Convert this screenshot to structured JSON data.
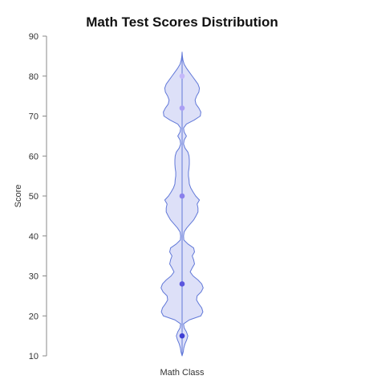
{
  "chart_data": {
    "type": "violin",
    "title": "Math Test Scores Distribution",
    "xlabel": "",
    "ylabel": "Score",
    "categories": [
      "Math Class"
    ],
    "ylim": [
      10,
      90
    ],
    "yticks": [
      10,
      20,
      30,
      40,
      50,
      60,
      70,
      80,
      90
    ],
    "grid": false,
    "points": [
      15,
      28,
      50,
      72,
      80
    ],
    "point_colors": [
      "#3f3fd4",
      "#5a55de",
      "#8a80ec",
      "#aa9ef4",
      "#c4b8fa"
    ],
    "violin_range": [
      10,
      86
    ],
    "density_profile": [
      [
        10,
        0.0
      ],
      [
        11,
        0.04
      ],
      [
        12,
        0.06
      ],
      [
        13,
        0.1
      ],
      [
        14,
        0.16
      ],
      [
        15,
        0.2
      ],
      [
        16,
        0.15
      ],
      [
        17,
        0.07
      ],
      [
        18,
        0.05
      ],
      [
        19,
        0.25
      ],
      [
        20,
        0.65
      ],
      [
        21,
        0.72
      ],
      [
        22,
        0.68
      ],
      [
        23,
        0.58
      ],
      [
        24,
        0.5
      ],
      [
        25,
        0.52
      ],
      [
        26,
        0.66
      ],
      [
        27,
        0.73
      ],
      [
        28,
        0.68
      ],
      [
        29,
        0.55
      ],
      [
        30,
        0.38
      ],
      [
        31,
        0.28
      ],
      [
        32,
        0.35
      ],
      [
        33,
        0.43
      ],
      [
        34,
        0.4
      ],
      [
        35,
        0.35
      ],
      [
        36,
        0.43
      ],
      [
        37,
        0.4
      ],
      [
        38,
        0.2
      ],
      [
        39,
        0.06
      ],
      [
        40,
        0.05
      ],
      [
        41,
        0.07
      ],
      [
        42,
        0.16
      ],
      [
        43,
        0.28
      ],
      [
        44,
        0.4
      ],
      [
        45,
        0.48
      ],
      [
        46,
        0.55
      ],
      [
        47,
        0.55
      ],
      [
        48,
        0.52
      ],
      [
        49,
        0.6
      ],
      [
        50,
        0.47
      ],
      [
        51,
        0.38
      ],
      [
        52,
        0.3
      ],
      [
        53,
        0.25
      ],
      [
        54,
        0.24
      ],
      [
        55,
        0.22
      ],
      [
        56,
        0.22
      ],
      [
        57,
        0.24
      ],
      [
        58,
        0.25
      ],
      [
        59,
        0.25
      ],
      [
        60,
        0.24
      ],
      [
        61,
        0.2
      ],
      [
        62,
        0.1
      ],
      [
        63,
        0.05
      ],
      [
        64,
        0.07
      ],
      [
        65,
        0.15
      ],
      [
        66,
        0.07
      ],
      [
        67,
        0.05
      ],
      [
        68,
        0.15
      ],
      [
        69,
        0.42
      ],
      [
        70,
        0.63
      ],
      [
        71,
        0.65
      ],
      [
        72,
        0.58
      ],
      [
        73,
        0.48
      ],
      [
        74,
        0.45
      ],
      [
        75,
        0.5
      ],
      [
        76,
        0.58
      ],
      [
        77,
        0.6
      ],
      [
        78,
        0.55
      ],
      [
        79,
        0.45
      ],
      [
        80,
        0.35
      ],
      [
        81,
        0.25
      ],
      [
        82,
        0.15
      ],
      [
        83,
        0.07
      ],
      [
        84,
        0.03
      ],
      [
        85,
        0.01
      ],
      [
        86,
        0.0
      ]
    ],
    "violin_fill": "#dde0f8",
    "violin_stroke": "#6178d8",
    "axis_color": "#888888"
  }
}
